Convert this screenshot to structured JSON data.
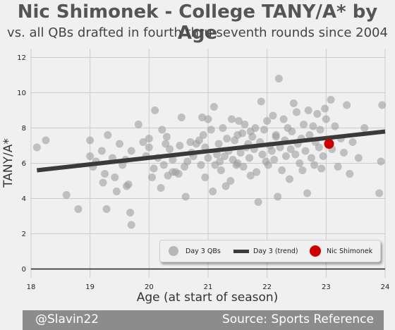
{
  "title": "Nic Shimonek - College TANY/A* by Age",
  "subtitle": "vs. all QBs drafted in fourth thru seventh rounds since 2004",
  "footer": {
    "left": "@Slavin22",
    "right": "Source: Sports Reference"
  },
  "colors": {
    "background": "#f0f0f0",
    "scatter": "#9e9e9e",
    "trend": "#3a3a3a",
    "highlight": "#cc0000",
    "footer": "#8c8c8c"
  },
  "chart_data": {
    "type": "scatter",
    "xlabel": "Age (at start of season)",
    "ylabel": "TANY/A*",
    "xlim": [
      18,
      24
    ],
    "ylim": [
      -0.5,
      12.5
    ],
    "xticks": [
      18,
      19,
      20,
      21,
      22,
      23,
      24
    ],
    "yticks": [
      0,
      2,
      4,
      6,
      8,
      10,
      12
    ],
    "grid": true,
    "legend_position": "bottom-right",
    "legend": [
      "Day 3 QBs",
      "Day 3 (trend)",
      "Nic Shimonek"
    ],
    "series": [
      {
        "name": "Day 3 QBs",
        "type": "scatter",
        "points": [
          [
            18.1,
            6.9
          ],
          [
            18.25,
            7.3
          ],
          [
            18.6,
            4.2
          ],
          [
            18.8,
            3.4
          ],
          [
            19.0,
            7.3
          ],
          [
            19.0,
            6.4
          ],
          [
            19.05,
            5.8
          ],
          [
            19.1,
            6.1
          ],
          [
            19.2,
            6.7
          ],
          [
            19.22,
            4.9
          ],
          [
            19.25,
            5.4
          ],
          [
            19.28,
            3.4
          ],
          [
            19.3,
            7.6
          ],
          [
            19.38,
            6.3
          ],
          [
            19.42,
            5.2
          ],
          [
            19.45,
            4.4
          ],
          [
            19.5,
            7.1
          ],
          [
            19.55,
            5.9
          ],
          [
            19.6,
            6.2
          ],
          [
            19.62,
            4.7
          ],
          [
            19.65,
            4.8
          ],
          [
            19.68,
            3.2
          ],
          [
            19.7,
            2.5
          ],
          [
            19.7,
            6.7
          ],
          [
            19.82,
            8.2
          ],
          [
            19.9,
            7.2
          ],
          [
            19.95,
            6.4
          ],
          [
            20.0,
            7.4
          ],
          [
            20.0,
            6.9
          ],
          [
            20.05,
            5.2
          ],
          [
            20.08,
            5.7
          ],
          [
            20.1,
            9.0
          ],
          [
            20.15,
            6.3
          ],
          [
            20.2,
            4.6
          ],
          [
            20.22,
            7.9
          ],
          [
            20.25,
            5.9
          ],
          [
            20.3,
            7.5
          ],
          [
            20.32,
            5.3
          ],
          [
            20.35,
            6.8
          ],
          [
            20.4,
            6.2
          ],
          [
            20.4,
            5.5
          ],
          [
            20.45,
            5.5
          ],
          [
            20.5,
            5.4
          ],
          [
            20.52,
            7.0
          ],
          [
            20.55,
            8.6
          ],
          [
            20.6,
            5.8
          ],
          [
            20.62,
            4.1
          ],
          [
            20.65,
            6.1
          ],
          [
            20.7,
            7.2
          ],
          [
            20.72,
            6.6
          ],
          [
            20.75,
            6.4
          ],
          [
            20.8,
            7.1
          ],
          [
            20.85,
            7.3
          ],
          [
            20.88,
            5.9
          ],
          [
            20.9,
            8.6
          ],
          [
            20.92,
            7.6
          ],
          [
            20.95,
            6.9
          ],
          [
            20.95,
            5.2
          ],
          [
            21.0,
            8.5
          ],
          [
            21.0,
            6.3
          ],
          [
            21.05,
            7.9
          ],
          [
            21.08,
            4.4
          ],
          [
            21.1,
            9.2
          ],
          [
            21.12,
            5.9
          ],
          [
            21.15,
            6.5
          ],
          [
            21.18,
            7.1
          ],
          [
            21.2,
            6.1
          ],
          [
            21.22,
            5.6
          ],
          [
            21.25,
            8.0
          ],
          [
            21.28,
            6.4
          ],
          [
            21.3,
            4.7
          ],
          [
            21.32,
            7.4
          ],
          [
            21.35,
            6.7
          ],
          [
            21.38,
            5.0
          ],
          [
            21.4,
            8.5
          ],
          [
            21.42,
            6.2
          ],
          [
            21.45,
            7.3
          ],
          [
            21.48,
            5.9
          ],
          [
            21.5,
            6.0
          ],
          [
            21.52,
            8.4
          ],
          [
            21.55,
            6.6
          ],
          [
            21.58,
            7.7
          ],
          [
            21.6,
            5.8
          ],
          [
            21.62,
            8.2
          ],
          [
            21.65,
            6.9
          ],
          [
            21.68,
            7.1
          ],
          [
            21.7,
            6.3
          ],
          [
            21.72,
            5.3
          ],
          [
            21.75,
            7.5
          ],
          [
            21.78,
            6.8
          ],
          [
            21.8,
            8.0
          ],
          [
            21.82,
            5.5
          ],
          [
            21.85,
            3.8
          ],
          [
            21.88,
            7.2
          ],
          [
            21.9,
            9.5
          ],
          [
            21.92,
            6.5
          ],
          [
            21.95,
            7.9
          ],
          [
            21.98,
            6.1
          ],
          [
            22.0,
            8.4
          ],
          [
            22.02,
            5.9
          ],
          [
            22.05,
            7.0
          ],
          [
            22.08,
            6.7
          ],
          [
            22.1,
            8.7
          ],
          [
            22.12,
            6.2
          ],
          [
            22.15,
            7.6
          ],
          [
            22.18,
            4.1
          ],
          [
            22.2,
            10.8
          ],
          [
            22.22,
            6.9
          ],
          [
            22.25,
            5.6
          ],
          [
            22.28,
            8.5
          ],
          [
            22.3,
            7.3
          ],
          [
            22.32,
            6.4
          ],
          [
            22.35,
            8.0
          ],
          [
            22.38,
            5.1
          ],
          [
            22.4,
            6.8
          ],
          [
            22.42,
            7.8
          ],
          [
            22.45,
            9.4
          ],
          [
            22.48,
            6.5
          ],
          [
            22.5,
            8.9
          ],
          [
            22.52,
            7.1
          ],
          [
            22.55,
            6.0
          ],
          [
            22.58,
            7.4
          ],
          [
            22.6,
            5.6
          ],
          [
            22.62,
            8.2
          ],
          [
            22.65,
            6.7
          ],
          [
            22.68,
            4.3
          ],
          [
            22.7,
            9.0
          ],
          [
            22.72,
            7.6
          ],
          [
            22.75,
            6.3
          ],
          [
            22.78,
            8.1
          ],
          [
            22.8,
            5.9
          ],
          [
            22.82,
            7.2
          ],
          [
            22.85,
            8.8
          ],
          [
            22.88,
            6.9
          ],
          [
            22.9,
            7.9
          ],
          [
            22.92,
            5.7
          ],
          [
            22.95,
            6.4
          ],
          [
            22.98,
            9.1
          ],
          [
            23.0,
            8.5
          ],
          [
            23.05,
            7.3
          ],
          [
            23.08,
            9.6
          ],
          [
            23.1,
            6.8
          ],
          [
            23.15,
            8.1
          ],
          [
            23.2,
            5.8
          ],
          [
            23.25,
            7.4
          ],
          [
            23.3,
            6.6
          ],
          [
            23.35,
            9.3
          ],
          [
            23.4,
            5.4
          ],
          [
            23.45,
            7.2
          ],
          [
            23.55,
            6.3
          ],
          [
            23.65,
            8.0
          ],
          [
            23.95,
            9.3
          ],
          [
            23.9,
            4.3
          ],
          [
            23.93,
            6.1
          ],
          [
            21.72,
            7.8
          ],
          [
            20.28,
            7.1
          ],
          [
            22.15,
            7.5
          ],
          [
            21.5,
            7.6
          ]
        ]
      },
      {
        "name": "Day 3 (trend)",
        "type": "line",
        "x": [
          18.1,
          24.0
        ],
        "y": [
          5.6,
          7.8
        ]
      },
      {
        "name": "Nic Shimonek",
        "type": "scatter",
        "points": [
          [
            23.05,
            7.1
          ]
        ]
      }
    ]
  }
}
